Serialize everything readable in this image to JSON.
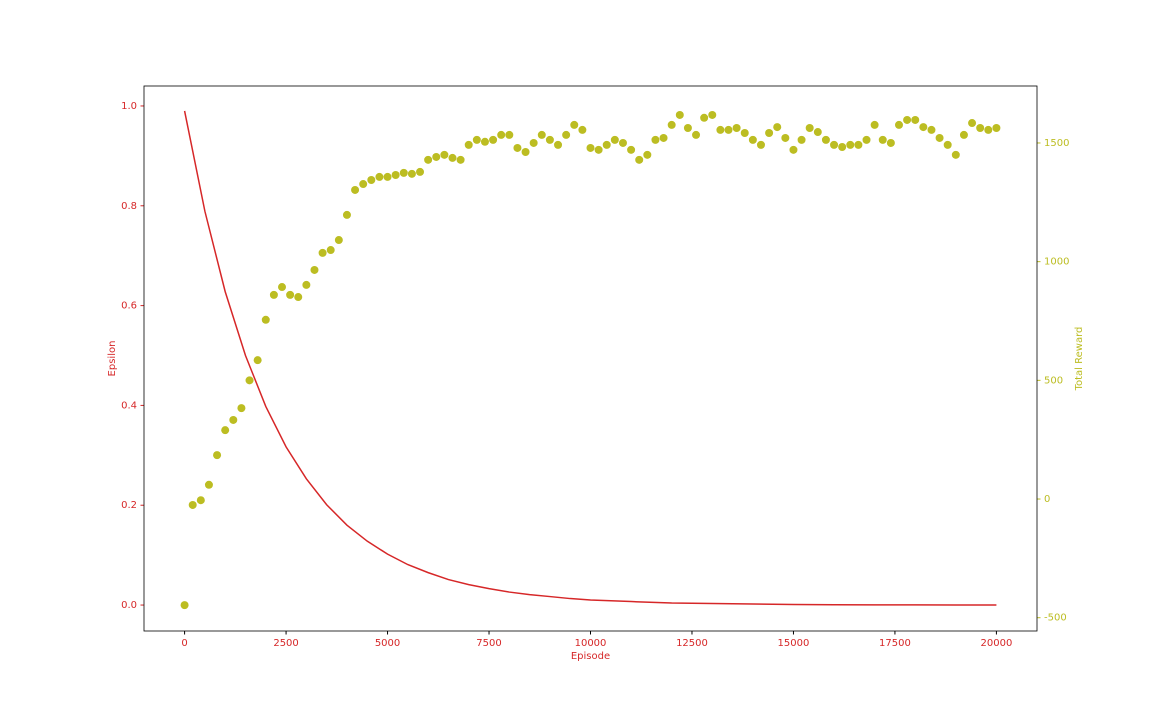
{
  "chart_data": {
    "type": "line_scatter_dual",
    "xlabel": "Episode",
    "ylabel": "Epsilon",
    "y2label": "Total Reward",
    "xlim": [
      -1000,
      21000
    ],
    "xticks": [
      0,
      2500,
      5000,
      7500,
      10000,
      12500,
      15000,
      17500,
      20000
    ],
    "ylim": [
      -0.052,
      1.04
    ],
    "yticks": [
      {
        "value": 0,
        "label": "0.0"
      },
      0.2,
      0.4,
      0.6,
      0.8,
      {
        "value": 1,
        "label": "1.0"
      }
    ],
    "y2lim": [
      -556,
      1740
    ],
    "y2ticks": [
      -500,
      0,
      500,
      1000,
      1500
    ],
    "series": [
      {
        "name": "Epsilon",
        "kind": "line",
        "color": "#d62728",
        "axis": "y",
        "x": [
          0,
          500,
          1000,
          1500,
          2000,
          2500,
          3000,
          3500,
          4000,
          4500,
          5000,
          5500,
          6000,
          6500,
          7000,
          7500,
          8000,
          8500,
          9000,
          9500,
          10000,
          11000,
          12000,
          13000,
          14000,
          15000,
          16000,
          17000,
          18000,
          19000,
          20000
        ],
        "values": [
          0.99,
          0.789,
          0.628,
          0.5,
          0.398,
          0.317,
          0.253,
          0.201,
          0.16,
          0.128,
          0.102,
          0.081,
          0.065,
          0.051,
          0.041,
          0.033,
          0.026,
          0.021,
          0.017,
          0.013,
          0.01,
          0.007,
          0.004,
          0.003,
          0.002,
          0.001,
          0.0007,
          0.0004,
          0.0003,
          0.0002,
          0.0001
        ]
      },
      {
        "name": "Total Reward",
        "kind": "scatter",
        "color": "#bcbd22",
        "axis": "y2",
        "x": [
          0,
          200,
          400,
          600,
          800,
          1000,
          1200,
          1400,
          1600,
          1800,
          2000,
          2200,
          2400,
          2600,
          2800,
          3000,
          3200,
          3400,
          3600,
          3800,
          4000,
          4200,
          4400,
          4600,
          4800,
          5000,
          5200,
          5400,
          5600,
          5800,
          6000,
          6200,
          6400,
          6600,
          6800,
          7000,
          7200,
          7400,
          7600,
          7800,
          8000,
          8200,
          8400,
          8600,
          8800,
          9000,
          9200,
          9400,
          9600,
          9800,
          10000,
          10200,
          10400,
          10600,
          10800,
          11000,
          11200,
          11400,
          11600,
          11800,
          12000,
          12200,
          12400,
          12600,
          12800,
          13000,
          13200,
          13400,
          13600,
          13800,
          14000,
          14200,
          14400,
          14600,
          14800,
          15000,
          15200,
          15400,
          15600,
          15800,
          16000,
          16200,
          16400,
          16600,
          16800,
          17000,
          17200,
          17400,
          17600,
          17800,
          18000,
          18200,
          18400,
          18600,
          18800,
          19000,
          19200,
          19400,
          19600,
          19800,
          20000
        ],
        "values": [
          -447,
          -25,
          -5,
          60,
          185,
          290,
          333,
          383,
          500,
          585,
          755,
          860,
          893,
          860,
          851,
          902,
          965,
          1037,
          1049,
          1091,
          1197,
          1302,
          1327,
          1344,
          1357,
          1357,
          1365,
          1374,
          1370,
          1378,
          1429,
          1441,
          1450,
          1437,
          1429,
          1492,
          1513,
          1505,
          1513,
          1534,
          1534,
          1479,
          1462,
          1500,
          1534,
          1513,
          1492,
          1534,
          1576,
          1555,
          1479,
          1471,
          1492,
          1513,
          1500,
          1471,
          1429,
          1450,
          1513,
          1521,
          1576,
          1618,
          1563,
          1534,
          1606,
          1618,
          1555,
          1555,
          1563,
          1542,
          1513,
          1492,
          1542,
          1567,
          1521,
          1471,
          1513,
          1563,
          1546,
          1513,
          1492,
          1483,
          1492,
          1492,
          1513,
          1576,
          1513,
          1500,
          1576,
          1597,
          1597,
          1567,
          1555,
          1521,
          1492,
          1450,
          1534,
          1584,
          1563,
          1555,
          1563
        ]
      }
    ]
  }
}
